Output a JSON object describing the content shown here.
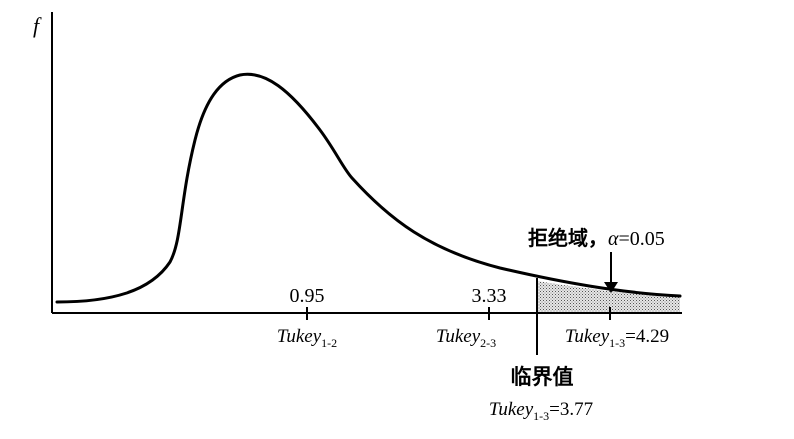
{
  "y_axis_label": "f",
  "ticks": [
    {
      "value": "0.95",
      "name": "Tukey",
      "sub": "1-2",
      "suffix": ""
    },
    {
      "value": "3.33",
      "name": "Tukey",
      "sub": "2-3",
      "suffix": ""
    },
    {
      "value": "",
      "name": "Tukey",
      "sub": "1-3",
      "suffix": "=4.29"
    }
  ],
  "rejection_region": {
    "label": "拒绝域，",
    "alpha_symbol": "α",
    "alpha_value": "=0.05"
  },
  "critical_value": {
    "label": "临界值",
    "name": "Tukey",
    "sub": "1-3",
    "suffix": "=3.77"
  },
  "colors": {
    "line": "#000000",
    "shade_fill": "#c9c9c9"
  }
}
